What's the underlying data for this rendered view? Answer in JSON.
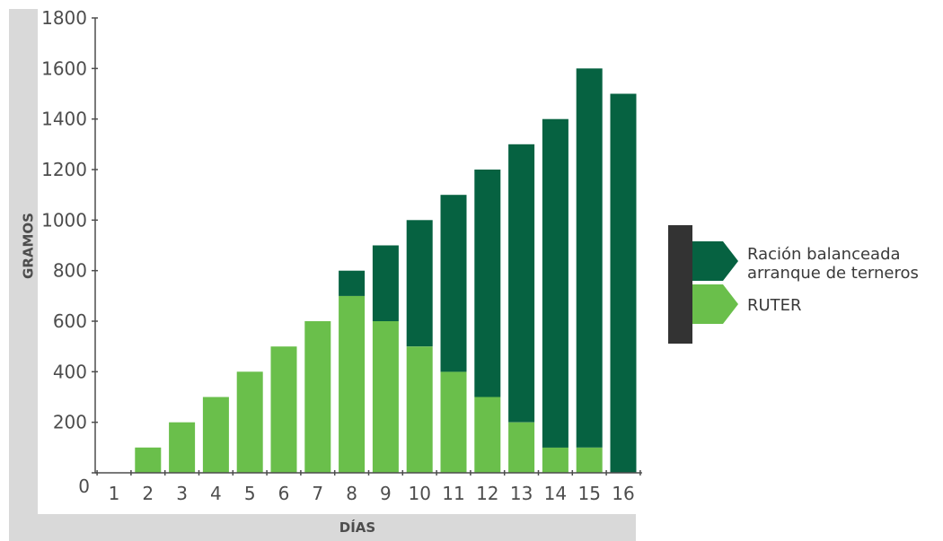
{
  "chart_data": {
    "type": "bar",
    "stacked": true,
    "categories": [
      "1",
      "2",
      "3",
      "4",
      "5",
      "6",
      "7",
      "8",
      "9",
      "10",
      "11",
      "12",
      "13",
      "14",
      "15",
      "16"
    ],
    "series": [
      {
        "name": "RUTER",
        "color": "#6abf4b",
        "values": [
          0,
          100,
          200,
          300,
          400,
          500,
          600,
          700,
          600,
          500,
          400,
          300,
          200,
          100,
          100,
          0
        ]
      },
      {
        "name": "Ración balanceada arranque de terneros",
        "color": "#066241",
        "values": [
          0,
          0,
          0,
          0,
          0,
          0,
          0,
          100,
          300,
          500,
          700,
          900,
          1100,
          1300,
          1500,
          1500
        ]
      }
    ],
    "xlabel": "DÍAS",
    "ylabel": "GRAMOS",
    "ylim": [
      0,
      1800
    ],
    "yticks": [
      0,
      200,
      400,
      600,
      800,
      1000,
      1200,
      1400,
      1600,
      1800
    ],
    "grid": false,
    "legend": {
      "placement": "right",
      "items": [
        {
          "lines": [
            "Ración balanceada",
            "arranque de terneros"
          ],
          "color": "#066241"
        },
        {
          "lines": [
            "RUTER"
          ],
          "color": "#6abf4b"
        }
      ]
    }
  },
  "colors": {
    "frame": "#d9d9d9",
    "axis": "#4d4d4d",
    "legend_bar": "#333333"
  }
}
